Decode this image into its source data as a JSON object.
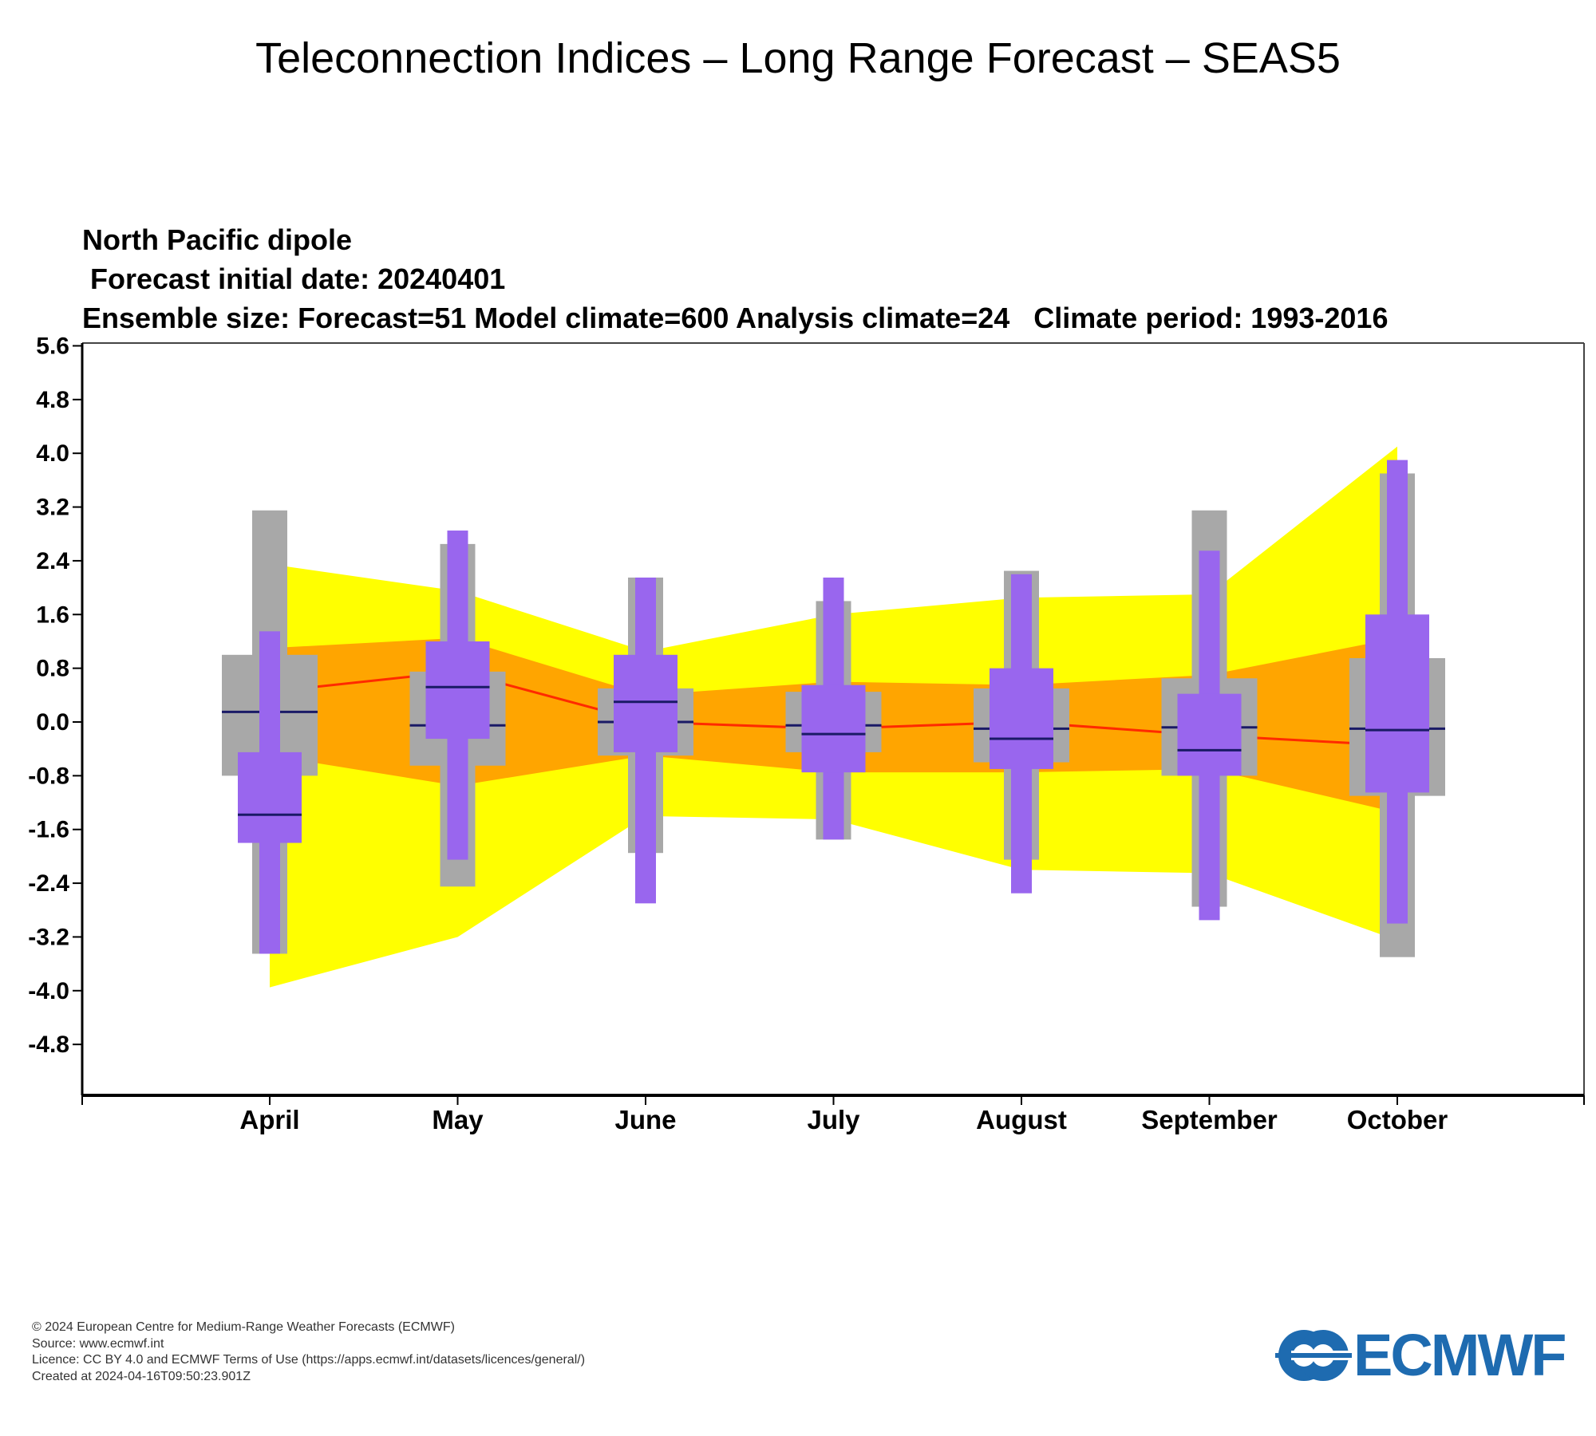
{
  "title": "Teleconnection Indices – Long Range Forecast – SEAS5",
  "chart_data": {
    "type": "box",
    "subtitle_lines": [
      "North Pacific dipole",
      " Forecast initial date: 20240401",
      "Ensemble size: Forecast=51 Model climate=600 Analysis climate=24   Climate period: 1993-2016"
    ],
    "categories": [
      "April",
      "May",
      "June",
      "July",
      "August",
      "September",
      "October"
    ],
    "yticks": [
      "5.6",
      "4.8",
      "4.0",
      "3.2",
      "2.4",
      "1.6",
      "0.8",
      "0.0",
      "-0.8",
      "-1.6",
      "-2.4",
      "-3.2",
      "-4.0",
      "-4.8"
    ],
    "ylim": [
      -5.5,
      5.6
    ],
    "analysis_climate_outer": {
      "upper": [
        2.35,
        1.95,
        1.05,
        1.6,
        1.85,
        1.9,
        4.1
      ],
      "lower": [
        -3.95,
        -3.2,
        -1.4,
        -1.45,
        -2.2,
        -2.25,
        -3.25
      ]
    },
    "analysis_climate_inner": {
      "upper": [
        1.1,
        1.25,
        0.4,
        0.6,
        0.55,
        0.7,
        1.25
      ],
      "lower": [
        -0.5,
        -0.95,
        -0.5,
        -0.75,
        -0.75,
        -0.7,
        -1.35
      ]
    },
    "analysis_climate_median": [
      0.45,
      0.75,
      0.0,
      -0.1,
      0.0,
      -0.2,
      -0.35
    ],
    "model_climate": {
      "min": [
        -3.45,
        -2.45,
        -1.95,
        -1.75,
        -2.05,
        -2.75,
        -3.5
      ],
      "q1": [
        -0.8,
        -0.65,
        -0.5,
        -0.45,
        -0.6,
        -0.8,
        -1.1
      ],
      "median": [
        0.15,
        -0.05,
        0.0,
        -0.05,
        -0.1,
        -0.08,
        -0.1
      ],
      "q3": [
        1.0,
        0.75,
        0.5,
        0.45,
        0.5,
        0.65,
        0.95
      ],
      "max": [
        3.15,
        2.65,
        2.15,
        1.8,
        2.25,
        3.15,
        3.7
      ]
    },
    "forecast": {
      "min": [
        -3.45,
        -2.05,
        -2.7,
        -1.75,
        -2.55,
        -2.95,
        -3.0
      ],
      "q1": [
        -1.8,
        -0.25,
        -0.45,
        -0.75,
        -0.7,
        -0.8,
        -1.05
      ],
      "median": [
        -1.38,
        0.52,
        0.3,
        -0.18,
        -0.25,
        -0.42,
        -0.12
      ],
      "q3": [
        -0.45,
        1.2,
        1.0,
        0.55,
        0.8,
        0.42,
        1.6
      ],
      "max": [
        1.35,
        2.85,
        2.15,
        2.15,
        2.2,
        2.55,
        3.9
      ]
    },
    "colors": {
      "outer_band": "#ffff00",
      "inner_band": "#ffa500",
      "median_line": "#ff2a00",
      "model_climate": "#a8a8a8",
      "forecast": "#9966ee",
      "median_tick": "#1a1a66"
    }
  },
  "footer": {
    "lines": [
      "© 2024 European Centre for Medium-Range Weather Forecasts (ECMWF)",
      "Source: www.ecmwf.int",
      "Licence: CC BY 4.0 and ECMWF Terms of Use (https://apps.ecmwf.int/datasets/licences/general/)",
      "Created at 2024-04-16T09:50:23.901Z"
    ]
  },
  "logo": {
    "text": "ECMWF",
    "color": "#1e6bb0"
  }
}
